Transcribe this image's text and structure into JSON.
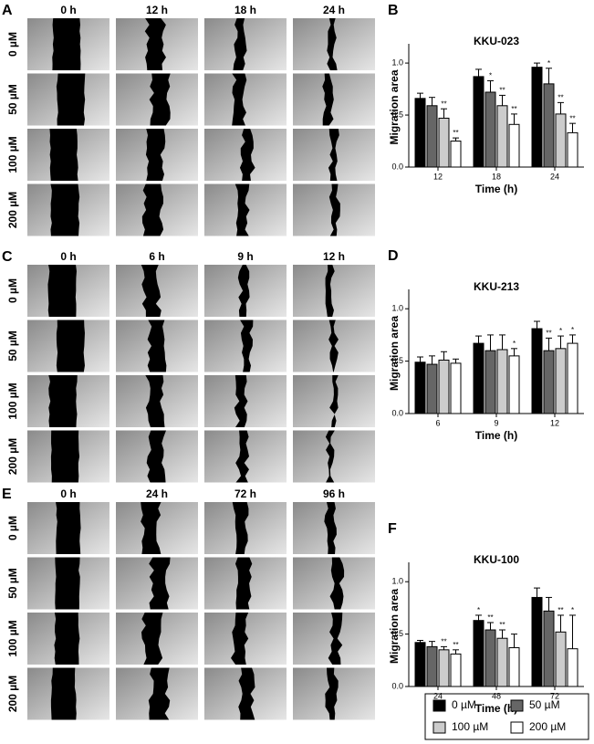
{
  "image_panels": [
    {
      "letter": "A",
      "columns": [
        "0 h",
        "12 h",
        "18 h",
        "24 h"
      ],
      "rows": [
        "0 µM",
        "50 µM",
        "100 µM",
        "200 µM"
      ]
    },
    {
      "letter": "C",
      "columns": [
        "0 h",
        "6 h",
        "9 h",
        "12 h"
      ],
      "rows": [
        "0 µM",
        "50 µM",
        "100 µM",
        "200 µM"
      ]
    },
    {
      "letter": "E",
      "columns": [
        "0 h",
        "24 h",
        "72 h",
        "96 h"
      ],
      "rows": [
        "0 µM",
        "50 µM",
        "100 µM",
        "200 µM"
      ]
    }
  ],
  "chart_data": [
    {
      "type": "bar",
      "panel_label": "B",
      "title": "KKU-023",
      "x_label": "Time (h)",
      "y_label": "Migration area",
      "categories": [
        "12",
        "18",
        "24"
      ],
      "ylim": [
        0,
        1.15
      ],
      "yticks": [
        {
          "value": 0,
          "label": "0.0"
        },
        {
          "value": 0.5,
          "label": "0.5"
        },
        {
          "value": 1,
          "label": "1.0"
        }
      ],
      "series": [
        {
          "color": "#000000",
          "values": [
            0.66,
            0.87,
            0.96
          ],
          "errors": [
            0.05,
            0.07,
            0.04
          ],
          "annotations": [
            null,
            null,
            null
          ]
        },
        {
          "color": "#666666",
          "values": [
            0.59,
            0.72,
            0.8
          ],
          "errors": [
            0.08,
            0.11,
            0.15
          ],
          "annotations": [
            null,
            "*",
            "*"
          ]
        },
        {
          "color": "#cccccc",
          "values": [
            0.47,
            0.59,
            0.51
          ],
          "errors": [
            0.09,
            0.1,
            0.11
          ],
          "annotations": [
            "**",
            "**",
            "**"
          ]
        },
        {
          "color": "#ffffff",
          "values": [
            0.25,
            0.41,
            0.33
          ],
          "errors": [
            0.03,
            0.1,
            0.09
          ],
          "annotations": [
            "**",
            "**",
            "**"
          ]
        }
      ]
    },
    {
      "type": "bar",
      "panel_label": "D",
      "title": "KKU-213",
      "x_label": "Time (h)",
      "y_label": "Migration area",
      "categories": [
        "6",
        "9",
        "12"
      ],
      "ylim": [
        0,
        1.15
      ],
      "yticks": [
        {
          "value": 0,
          "label": "0.0"
        },
        {
          "value": 0.5,
          "label": "0.5"
        },
        {
          "value": 1,
          "label": "1.0"
        }
      ],
      "series": [
        {
          "color": "#000000",
          "values": [
            0.49,
            0.67,
            0.81
          ],
          "errors": [
            0.05,
            0.07,
            0.07
          ],
          "annotations": [
            null,
            null,
            null
          ]
        },
        {
          "color": "#666666",
          "values": [
            0.47,
            0.6,
            0.6
          ],
          "errors": [
            0.08,
            0.15,
            0.12
          ],
          "annotations": [
            null,
            null,
            "**"
          ]
        },
        {
          "color": "#cccccc",
          "values": [
            0.51,
            0.61,
            0.62
          ],
          "errors": [
            0.08,
            0.14,
            0.12
          ],
          "annotations": [
            null,
            null,
            "*"
          ]
        },
        {
          "color": "#ffffff",
          "values": [
            0.48,
            0.55,
            0.67
          ],
          "errors": [
            0.04,
            0.07,
            0.08
          ],
          "annotations": [
            null,
            "*",
            "*"
          ]
        }
      ]
    },
    {
      "type": "bar",
      "panel_label": "F",
      "title": "KKU-100",
      "x_label": "Time (h)",
      "y_label": "Migration area",
      "categories": [
        "24",
        "48",
        "72"
      ],
      "ylim": [
        0,
        1.15
      ],
      "yticks": [
        {
          "value": 0,
          "label": "0.0"
        },
        {
          "value": 0.5,
          "label": "0.5"
        },
        {
          "value": 1,
          "label": "1.0"
        }
      ],
      "series": [
        {
          "name": "0 µM",
          "color": "#000000",
          "values": [
            0.42,
            0.63,
            0.85
          ],
          "errors": [
            0.02,
            0.05,
            0.09
          ],
          "annotations": [
            null,
            "*",
            null
          ]
        },
        {
          "name": "50 µM",
          "color": "#666666",
          "values": [
            0.38,
            0.54,
            0.72
          ],
          "errors": [
            0.05,
            0.07,
            0.13
          ],
          "annotations": [
            null,
            "**",
            null
          ]
        },
        {
          "name": "100 µM",
          "color": "#cccccc",
          "values": [
            0.35,
            0.46,
            0.52
          ],
          "errors": [
            0.03,
            0.08,
            0.16
          ],
          "annotations": [
            "**",
            "**",
            "**"
          ]
        },
        {
          "name": "200 µM",
          "color": "#ffffff",
          "values": [
            0.31,
            0.37,
            0.36
          ],
          "errors": [
            0.04,
            0.13,
            0.32
          ],
          "annotations": [
            "**",
            null,
            "*"
          ]
        }
      ]
    }
  ]
}
